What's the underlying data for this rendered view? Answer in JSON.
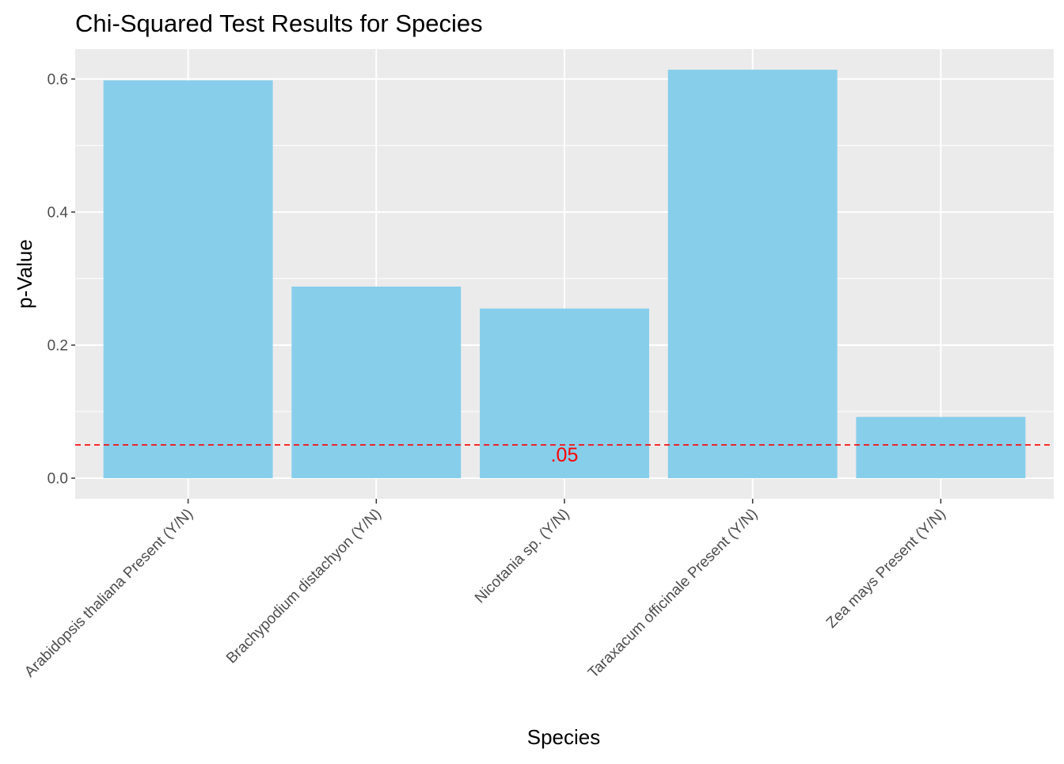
{
  "chart_data": {
    "type": "bar",
    "title": "Chi-Squared Test Results for Species",
    "xlabel": "Species",
    "ylabel": "p-Value",
    "categories": [
      "Arabidopsis thaliana Present (Y/N)",
      "Brachypodium distachyon (Y/N)",
      "Nicotania sp. (Y/N)",
      "Taraxacum officinale Present (Y/N)",
      "Zea mays Present (Y/N)"
    ],
    "values": [
      0.598,
      0.288,
      0.255,
      0.614,
      0.092
    ],
    "ylim": [
      -0.031,
      0.645
    ],
    "yticks": [
      0.0,
      0.2,
      0.4,
      0.6
    ],
    "ytick_labels": [
      "0.0",
      "0.2",
      "0.4",
      "0.6"
    ],
    "grid": true,
    "bar_color": "#87CEEB",
    "panel_background": "#EBEBEB",
    "reference_line": {
      "y": 0.05,
      "style": "dashed",
      "color": "#FF0000",
      "label": ".05"
    }
  }
}
